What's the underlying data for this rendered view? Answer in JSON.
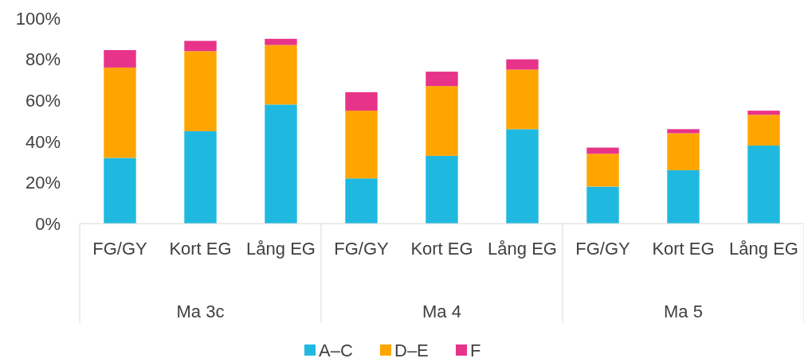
{
  "chart_data": {
    "type": "bar",
    "stacked": true,
    "categories": [
      "FG/GY",
      "Kort EG",
      "Lång EG",
      "FG/GY",
      "Kort EG",
      "Lång EG",
      "FG/GY",
      "Kort EG",
      "Lång EG"
    ],
    "annotations": [
      "Ma 3c",
      "Ma 4",
      "Ma 5"
    ],
    "series": [
      {
        "name": "A–C",
        "color": "#1fb9e0",
        "values": [
          32,
          45,
          58,
          22,
          33,
          46,
          18,
          26,
          38
        ]
      },
      {
        "name": "D–E",
        "color": "#ffa500",
        "values": [
          44,
          39,
          29,
          33,
          34,
          29,
          16,
          18,
          15
        ]
      },
      {
        "name": "F",
        "color": "#e8338a",
        "values": [
          8.5,
          5,
          3,
          9,
          7,
          5,
          3,
          2,
          2
        ]
      }
    ],
    "ylim": [
      0,
      100
    ],
    "yticks": [
      {
        "value": 0,
        "label": "0%"
      },
      {
        "value": 20,
        "label": "20%"
      },
      {
        "value": 40,
        "label": "40%"
      },
      {
        "value": 60,
        "label": "60%"
      },
      {
        "value": 80,
        "label": "80%"
      },
      {
        "value": 100,
        "label": "100%"
      }
    ],
    "grid": false,
    "legend": "bottom"
  }
}
